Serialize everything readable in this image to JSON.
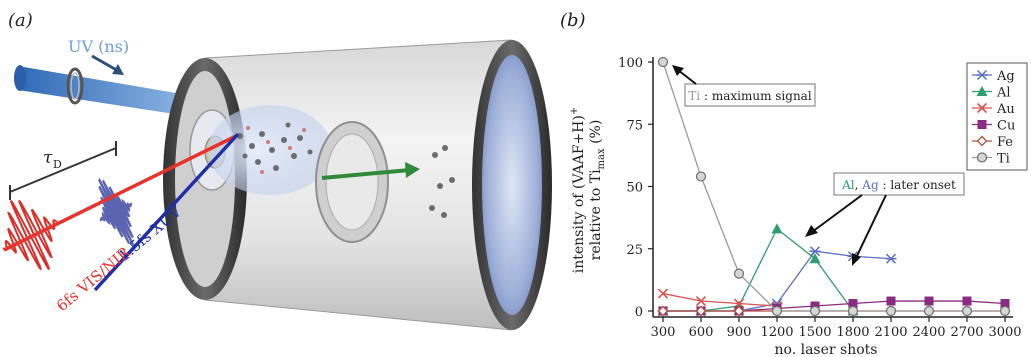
{
  "panel_a": {
    "label": "(a)",
    "uv_label": "UV (ns)",
    "tau_label": "τ",
    "tau_sub": "D",
    "xuv_label": "1.5fs XUV",
    "visnir_label": "6fs VIS/NIR"
  },
  "panel_b": {
    "label": "(b)",
    "ylabel_line1": "intensity of (VAAF+H)",
    "ylabel_sup": "+",
    "ylabel_line2_pre": "relative to Ti",
    "ylabel_sub": "max",
    "ylabel_line2_post": " (%)",
    "annotation_ti_metal": "Ti",
    "annotation_ti_text": " : maximum signal",
    "annotation_alag_al": "Al",
    "annotation_alag_sep": ", ",
    "annotation_alag_ag": "Ag",
    "annotation_alag_text": " : later onset"
  },
  "chart_data": {
    "type": "line",
    "title": "",
    "xlabel": "no. laser shots",
    "ylabel": "intensity of (VAAF+H)+ relative to Ti_max (%)",
    "x": [
      300,
      600,
      900,
      1200,
      1500,
      1800,
      2100,
      2400,
      2700,
      3000
    ],
    "xlim": [
      300,
      3000
    ],
    "ylim": [
      0,
      100
    ],
    "xticks": [
      300,
      600,
      900,
      1200,
      1500,
      1800,
      2100,
      2400,
      2700,
      3000
    ],
    "yticks": [
      0,
      25,
      50,
      75,
      100
    ],
    "grid": false,
    "legend": "right",
    "series": [
      {
        "name": "Ag",
        "color": "#5b6fc4",
        "marker": "asterisk",
        "values": [
          0,
          0,
          0,
          3,
          24,
          22,
          21,
          null,
          null,
          null
        ]
      },
      {
        "name": "Al",
        "color": "#2e9e6e",
        "marker": "triangle",
        "values": [
          0,
          0,
          2,
          33,
          21,
          0,
          null,
          null,
          null,
          null
        ]
      },
      {
        "name": "Au",
        "color": "#d9534f",
        "marker": "x",
        "values": [
          7,
          4,
          3,
          2,
          null,
          null,
          null,
          null,
          null,
          null
        ]
      },
      {
        "name": "Cu",
        "color": "#8b2a83",
        "marker": "square",
        "values": [
          0,
          0,
          0,
          1,
          2,
          3,
          4,
          4,
          4,
          3
        ]
      },
      {
        "name": "Fe",
        "color": "#b0523b",
        "marker": "diamond",
        "values": [
          0,
          0,
          0,
          0,
          0,
          0,
          0,
          0,
          0,
          0
        ]
      },
      {
        "name": "Ti",
        "color": "#9a9a9a",
        "marker": "circle",
        "values": [
          100,
          54,
          15,
          0,
          0,
          0,
          0,
          0,
          0,
          0
        ]
      }
    ]
  }
}
